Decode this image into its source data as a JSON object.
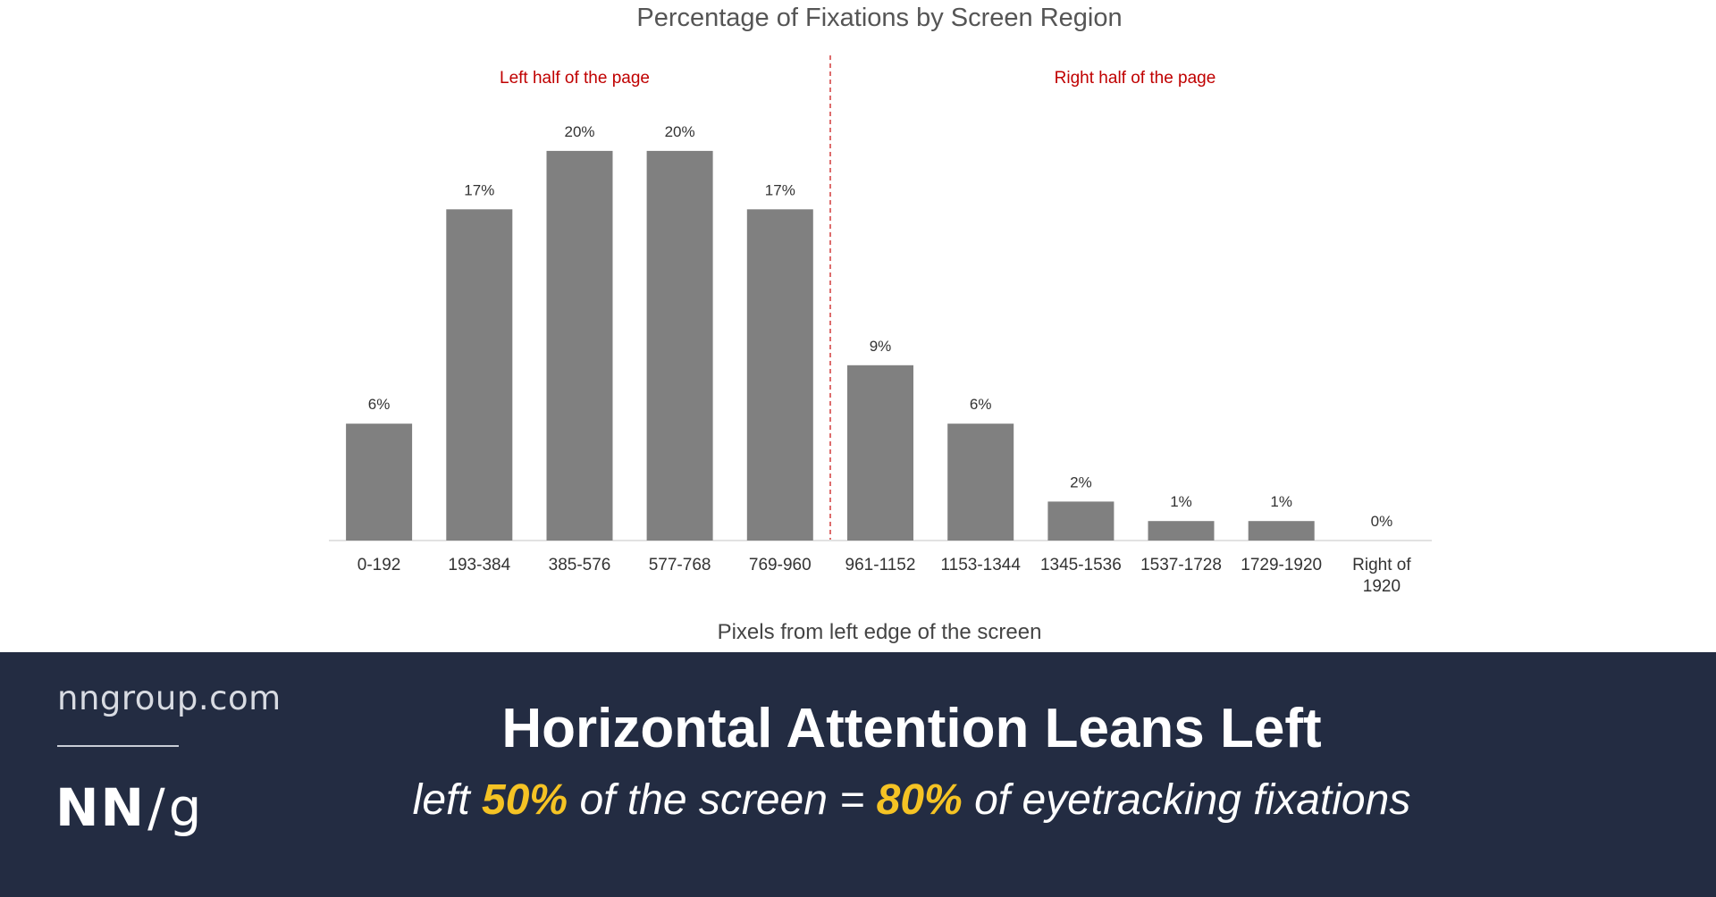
{
  "chart_data": {
    "type": "bar",
    "title": "Percentage of Fixations by Screen Region",
    "xlabel": "Pixels from left edge of the screen",
    "ylabel": "",
    "categories": [
      "0-192",
      "193-384",
      "385-576",
      "577-768",
      "769-960",
      "961-1152",
      "1153-1344",
      "1345-1536",
      "1537-1728",
      "1729-1920",
      "Right of 1920"
    ],
    "values": [
      6,
      17,
      20,
      20,
      17,
      9,
      6,
      2,
      1,
      1,
      0
    ],
    "data_labels": [
      "6%",
      "17%",
      "20%",
      "20%",
      "17%",
      "9%",
      "6%",
      "2%",
      "1%",
      "1%",
      "0%"
    ],
    "ylim": [
      0,
      20.5
    ],
    "grid": false,
    "bar_color": "#808080",
    "annotations": {
      "left_half": "Left half of the page",
      "right_half": "Right half of the page",
      "divider_color": "#d23c3c",
      "annotation_color": "#c00000"
    }
  },
  "footer": {
    "site": "nngroup.com",
    "logo": {
      "nn": "NN",
      "slash": "/",
      "g": "g"
    },
    "headline": "Horizontal Attention Leans Left",
    "subline": {
      "part1": "left ",
      "highlight1": "50%",
      "part2": " of the screen = ",
      "highlight2": "80%",
      "part3": " of eyetracking fixations"
    },
    "highlight_color": "#f5c324",
    "background": "#232c42"
  }
}
